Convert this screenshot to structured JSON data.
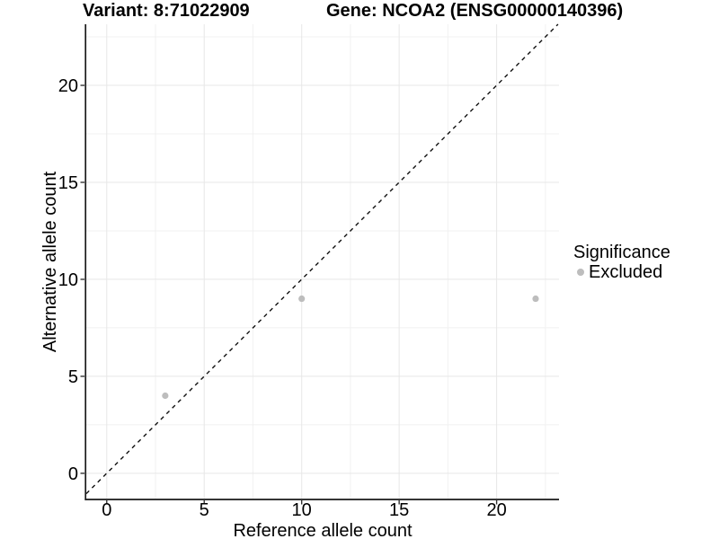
{
  "chart_data": {
    "type": "scatter",
    "title_left": "Variant: 8:71022909",
    "title_right": "Gene: NCOA2 (ENSG00000140396)",
    "xlabel": "Reference allele count",
    "ylabel": "Alternative allele count",
    "xticks": [
      0,
      5,
      10,
      15,
      20
    ],
    "yticks": [
      0,
      5,
      10,
      15,
      20
    ],
    "xlim": [
      -1.05,
      23.2
    ],
    "ylim": [
      -1.35,
      23.15
    ],
    "minor_grid_step": 2.5,
    "grid": true,
    "identity_line": {
      "style": "dashed",
      "slope": 1,
      "intercept": 0
    },
    "series": [
      {
        "name": "Excluded",
        "color": "#bdbdbd",
        "points": [
          [
            3,
            4
          ],
          [
            10,
            9
          ],
          [
            22,
            9
          ]
        ]
      }
    ],
    "legend": {
      "title": "Significance",
      "position": "right",
      "items": [
        {
          "label": "Excluded",
          "color": "#bdbdbd",
          "marker": "circle"
        }
      ]
    },
    "colors": {
      "background": "#ffffff",
      "text": "#000000",
      "axis_line": "#1a1a1a",
      "tick_mark": "#333333",
      "grid_major": "#e7e7e7",
      "grid_minor": "#f1f1f1",
      "identity_line": "#111111",
      "point": "#bdbdbd"
    }
  }
}
